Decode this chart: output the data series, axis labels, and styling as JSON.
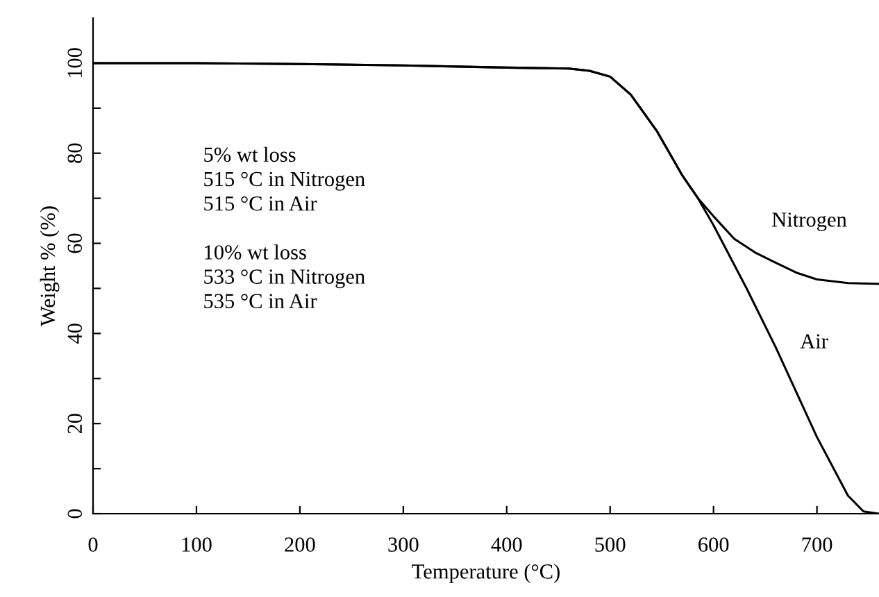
{
  "chart_data": {
    "type": "line",
    "xlabel": "Temperature (°C)",
    "ylabel": "Weight % (%)",
    "xlim": [
      0,
      760
    ],
    "xticks": [
      0,
      100,
      200,
      300,
      400,
      500,
      600,
      700
    ],
    "ylim": [
      0,
      110
    ],
    "yticks": [
      0,
      {
        "value": 10,
        "label": null
      },
      20,
      {
        "value": 30,
        "label": null
      },
      40,
      {
        "value": 50,
        "label": null
      },
      60,
      {
        "value": 70,
        "label": null
      },
      80,
      {
        "value": 90,
        "label": null
      },
      100
    ],
    "grid": false,
    "legend": false,
    "marker": "none",
    "line_style": "solid",
    "series": [
      {
        "name": "Nitrogen",
        "color": "#000000",
        "x": [
          0,
          100,
          200,
          300,
          400,
          460,
          480,
          500,
          520,
          545,
          570,
          585,
          600,
          620,
          640,
          660,
          680,
          700,
          730,
          760
        ],
        "values": [
          100,
          100,
          99.8,
          99.5,
          99,
          98.8,
          98.3,
          97,
          93,
          85,
          75,
          70,
          66,
          61,
          58,
          55.7,
          53.5,
          52,
          51.2,
          51
        ]
      },
      {
        "name": "Air",
        "color": "#000000",
        "x": [
          0,
          100,
          200,
          300,
          400,
          460,
          480,
          500,
          520,
          545,
          570,
          585,
          600,
          632,
          660,
          700,
          730,
          745,
          760
        ],
        "values": [
          100,
          100,
          99.8,
          99.5,
          99,
          98.8,
          98.3,
          97,
          93,
          85,
          75,
          70,
          64,
          50,
          37,
          17,
          4,
          0.5,
          0
        ]
      }
    ],
    "annotations": [
      "5% wt loss\n515 °C in Nitrogen\n515 °C in Air\n\n10% wt loss\n533 °C in Nitrogen\n535 °C in Air"
    ]
  }
}
